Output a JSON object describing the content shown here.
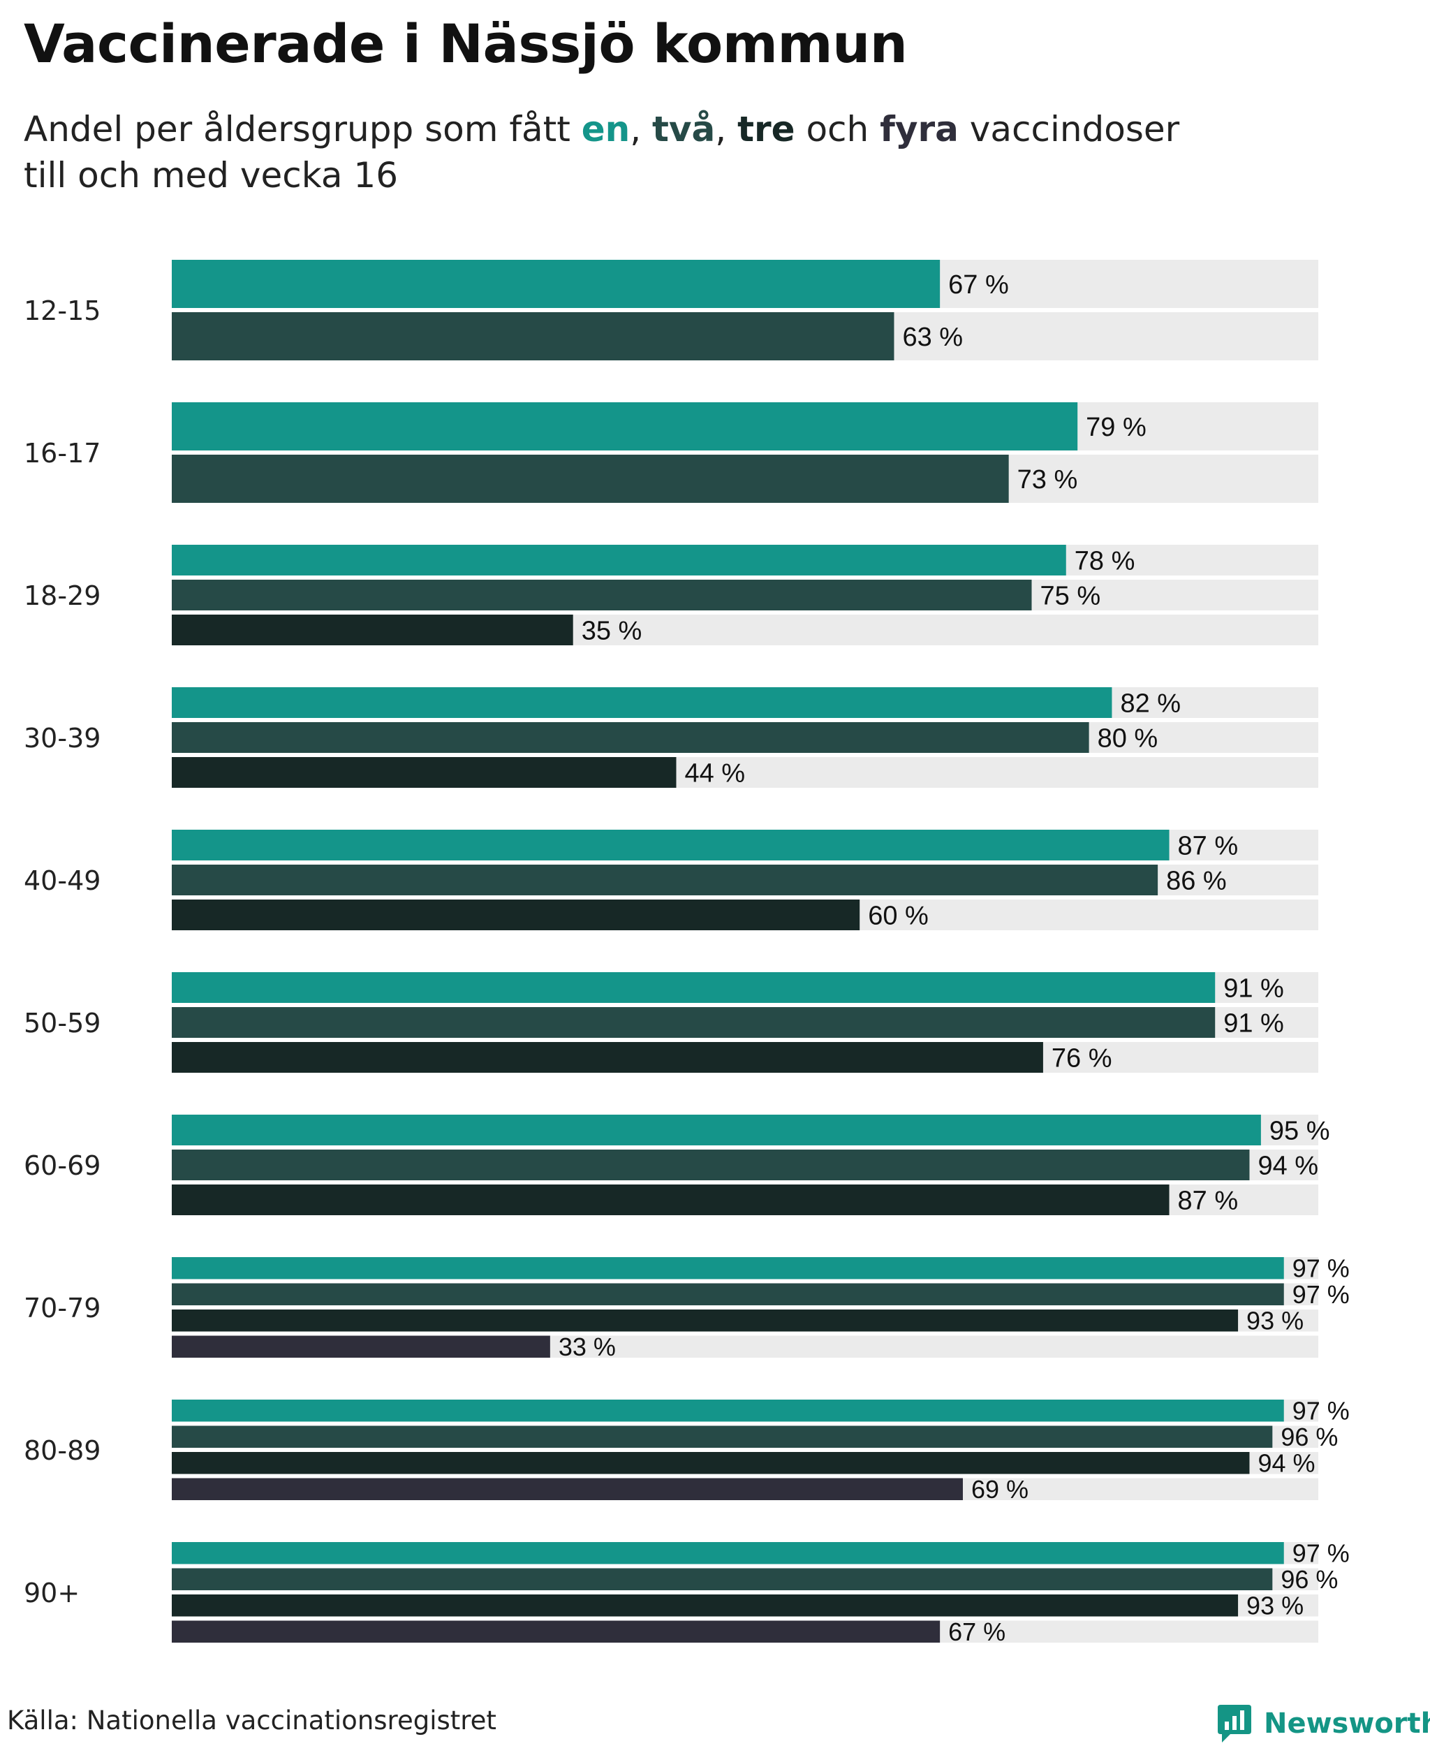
{
  "title": "Vaccinerade i Nässjö kommun",
  "subtitle": {
    "prefix": "Andel per åldersgrupp som fått ",
    "dose1": "en",
    "sep1": ", ",
    "dose2": "två",
    "sep2": ", ",
    "dose3": "tre",
    "sep3": " och ",
    "dose4": "fyra",
    "suffix": " vaccindoser",
    "line2": "till och med vecka 16"
  },
  "colors": {
    "dose1": "#14958A",
    "dose2": "#264A47",
    "dose3": "#172826",
    "dose4": "#2F2E3B",
    "track": "#EBEBEB"
  },
  "chart_data": {
    "type": "bar",
    "orientation": "horizontal",
    "title": "Vaccinerade i Nässjö kommun",
    "xlim": [
      0,
      100
    ],
    "value_suffix": " %",
    "grid": false,
    "legend": "inline in subtitle",
    "categories": [
      "12-15",
      "16-17",
      "18-29",
      "30-39",
      "40-49",
      "50-59",
      "60-69",
      "70-79",
      "80-89",
      "90+"
    ],
    "series": [
      {
        "name": "en",
        "values": [
          67,
          79,
          78,
          82,
          87,
          91,
          95,
          97,
          97,
          97
        ]
      },
      {
        "name": "två",
        "values": [
          63,
          73,
          75,
          80,
          86,
          91,
          94,
          97,
          96,
          96
        ]
      },
      {
        "name": "tre",
        "values": [
          null,
          null,
          35,
          44,
          60,
          76,
          87,
          93,
          94,
          93
        ]
      },
      {
        "name": "fyra",
        "values": [
          null,
          null,
          null,
          null,
          null,
          null,
          null,
          33,
          69,
          67
        ]
      }
    ]
  },
  "footer": {
    "source": "Källa: Nationella vaccinationsregistret",
    "brand": "Newsworthy"
  }
}
